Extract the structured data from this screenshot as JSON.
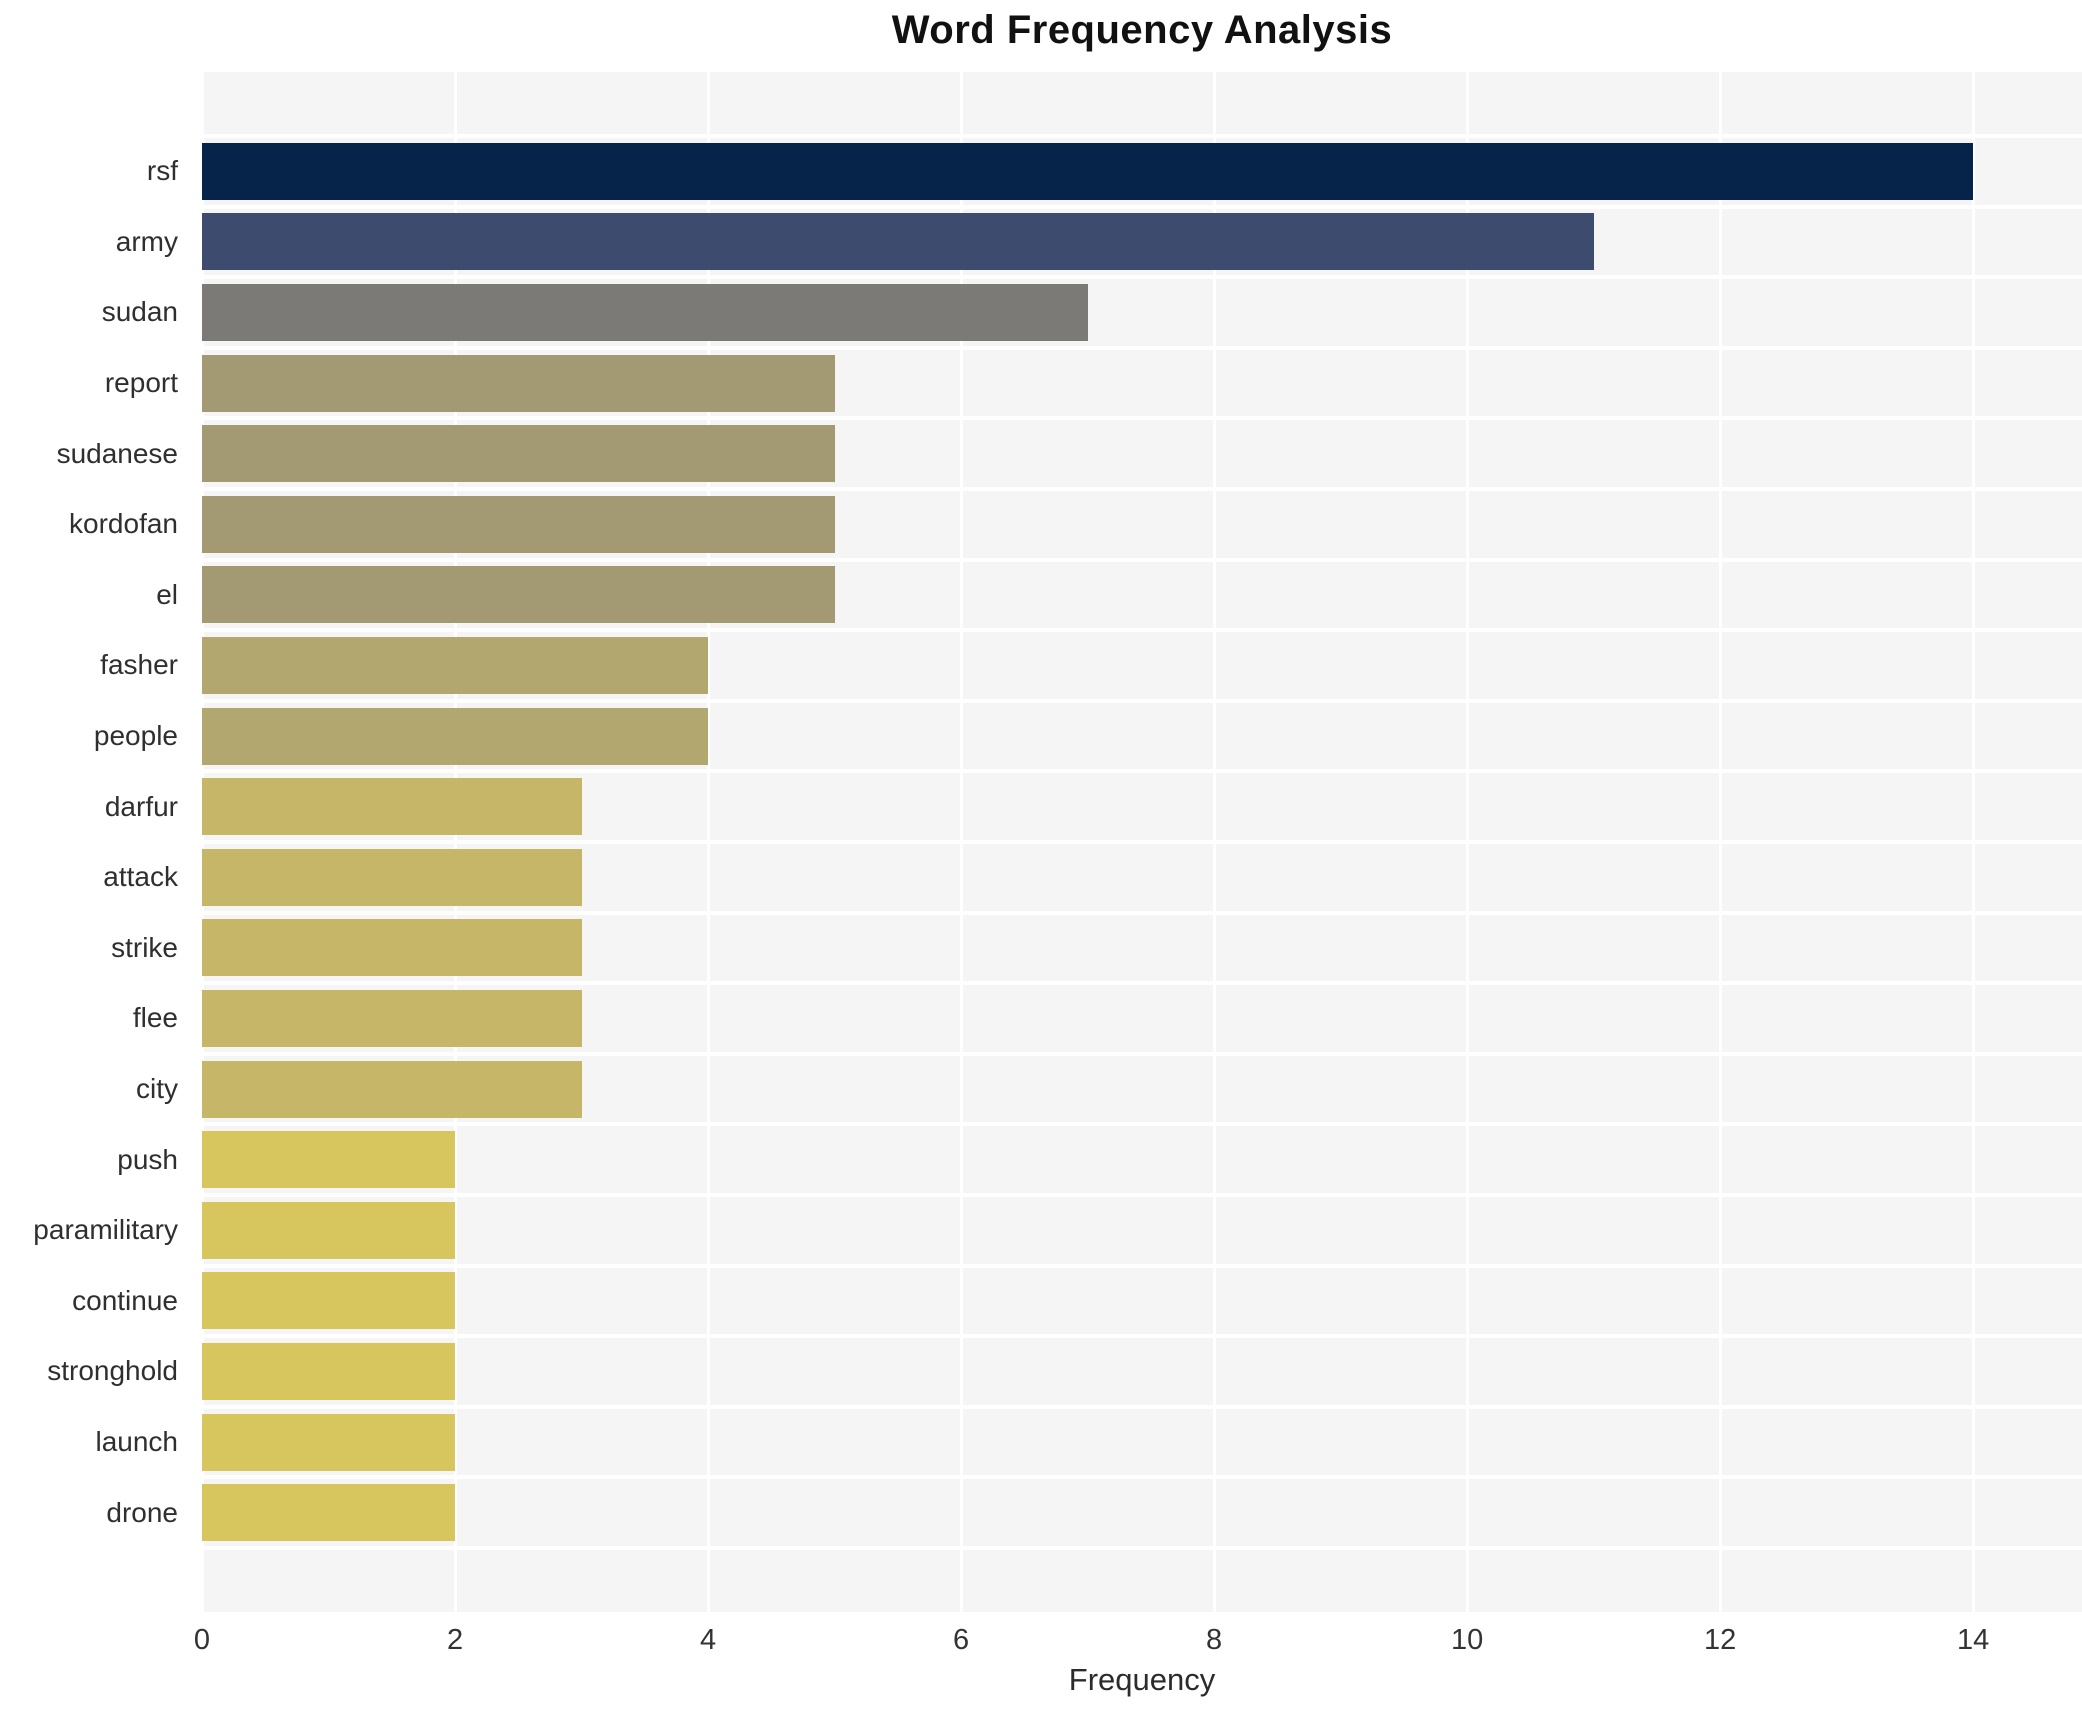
{
  "title": "Word Frequency Analysis",
  "chart_data": {
    "type": "bar",
    "orientation": "horizontal",
    "title": "Word Frequency Analysis",
    "xlabel": "Frequency",
    "ylabel": "",
    "categories": [
      "rsf",
      "army",
      "sudan",
      "report",
      "sudanese",
      "kordofan",
      "el",
      "fasher",
      "people",
      "darfur",
      "attack",
      "strike",
      "flee",
      "city",
      "push",
      "paramilitary",
      "continue",
      "stronghold",
      "launch",
      "drone"
    ],
    "values": [
      14,
      11,
      7,
      5,
      5,
      5,
      5,
      4,
      4,
      3,
      3,
      3,
      3,
      3,
      2,
      2,
      2,
      2,
      2,
      2
    ],
    "bar_colors": [
      "#06234a",
      "#3c4b6e",
      "#7b7a76",
      "#a39a73",
      "#a39a73",
      "#a39a73",
      "#a39a73",
      "#b2a76f",
      "#b2a76f",
      "#c6b667",
      "#c6b667",
      "#c6b667",
      "#c6b667",
      "#c6b667",
      "#d7c55e",
      "#d7c55e",
      "#d7c55e",
      "#d7c55e",
      "#d7c55e",
      "#d7c55e"
    ],
    "xticks": [
      0,
      2,
      4,
      6,
      8,
      10,
      12,
      14
    ],
    "xlim": [
      0,
      14.86
    ],
    "grid": true,
    "legend_position": "none",
    "plot_background": "#f5f5f6",
    "grid_color": "#ffffff",
    "title_color": "#111111",
    "tick_label_color": "#333333"
  }
}
